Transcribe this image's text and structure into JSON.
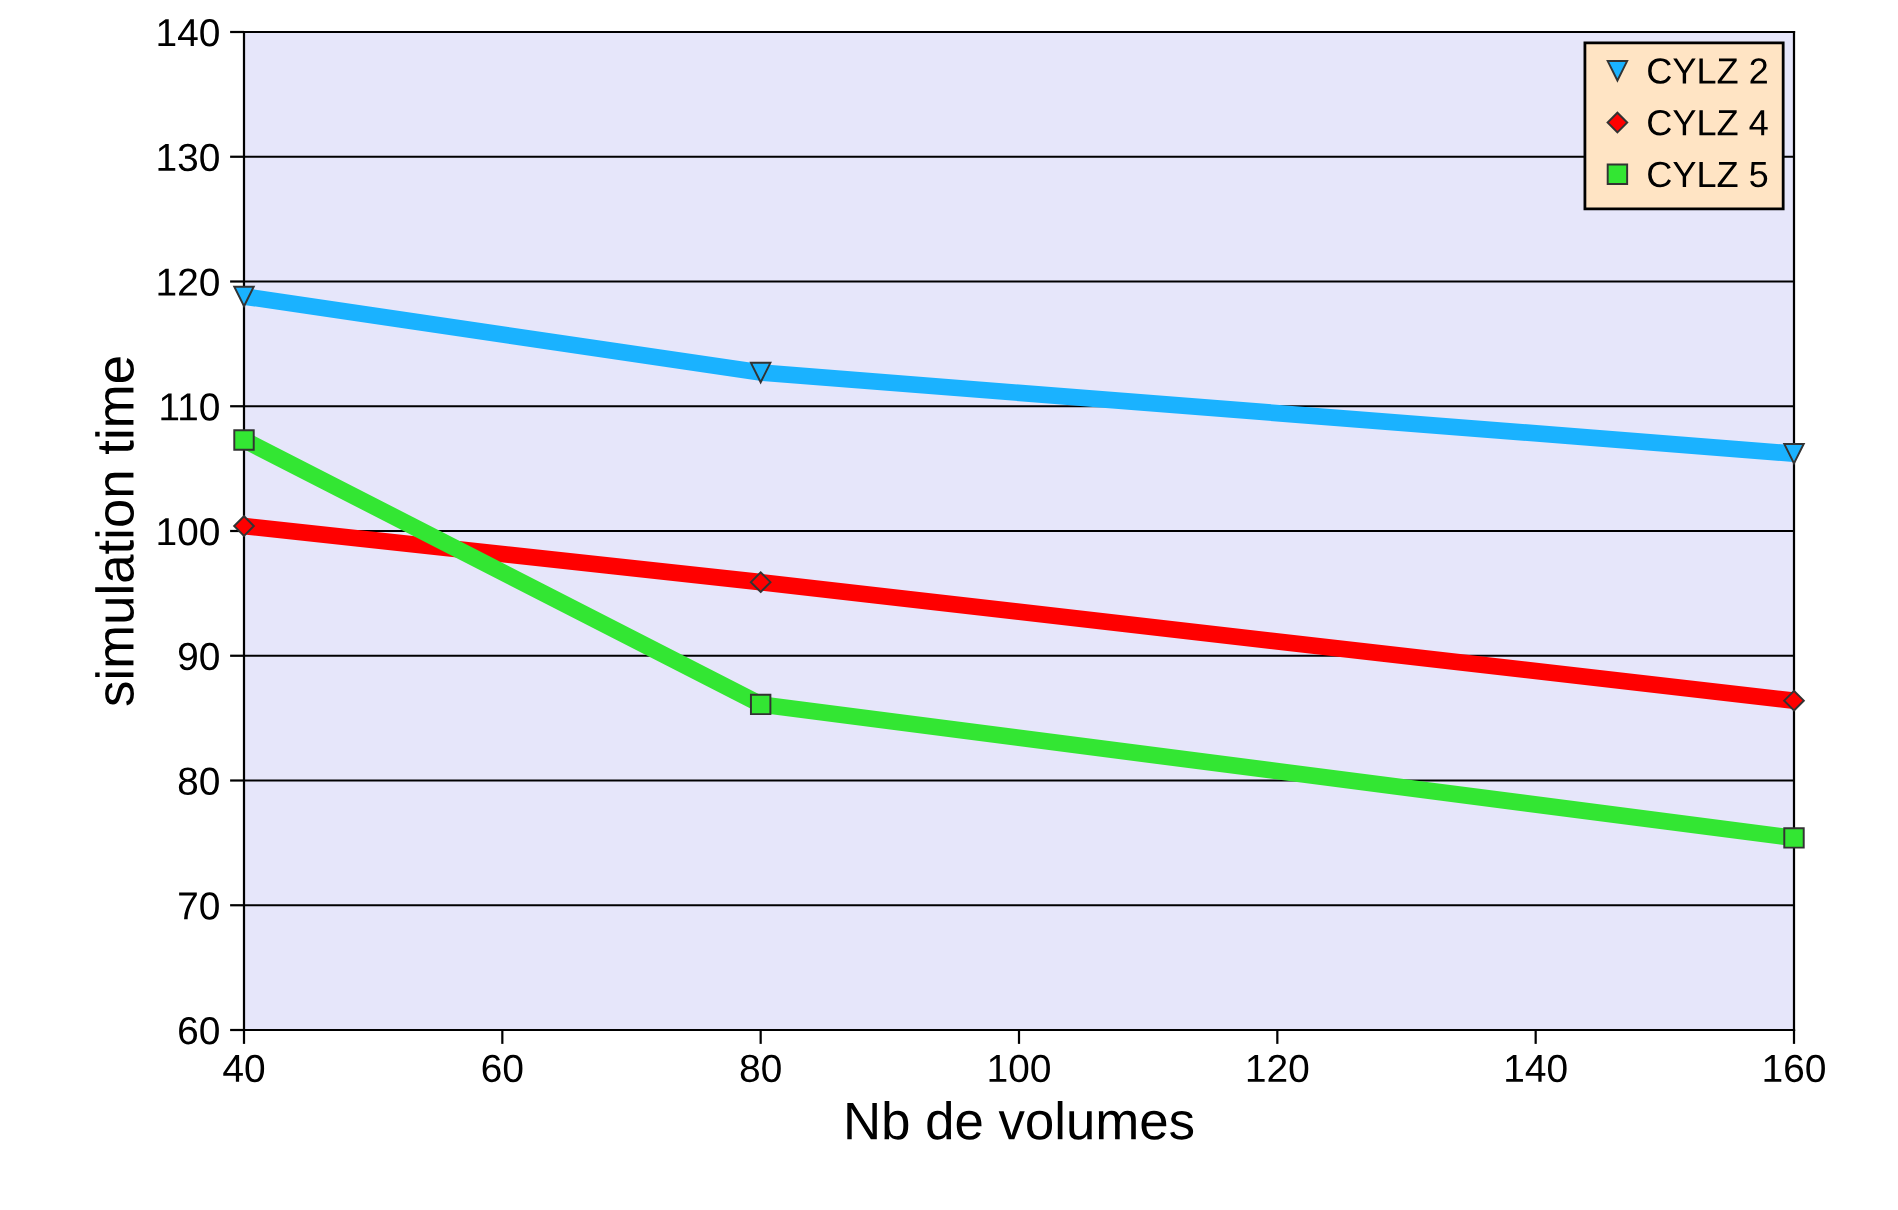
{
  "chart_data": {
    "type": "line",
    "xlabel": "Nb de volumes",
    "ylabel": "simulation time",
    "x": [
      40,
      80,
      160
    ],
    "series": [
      {
        "name": "CYLZ 2",
        "color": "#1ab2ff",
        "values": [
          118.8,
          112.7,
          106.2
        ],
        "marker": "triangle"
      },
      {
        "name": "CYLZ 4",
        "color": "#ff0000",
        "values": [
          100.4,
          95.9,
          86.4
        ],
        "marker": "diamond"
      },
      {
        "name": "CYLZ 5",
        "color": "#33e633",
        "values": [
          107.3,
          86.1,
          75.4
        ],
        "marker": "square"
      }
    ],
    "xlim": [
      40,
      160
    ],
    "xticks": [
      40,
      60,
      80,
      100,
      120,
      140,
      160
    ],
    "ylim": [
      60,
      140
    ],
    "yticks": [
      60,
      70,
      80,
      90,
      100,
      110,
      120,
      130,
      140
    ],
    "grid": "y",
    "legend": "top right",
    "line_style": "solid"
  }
}
